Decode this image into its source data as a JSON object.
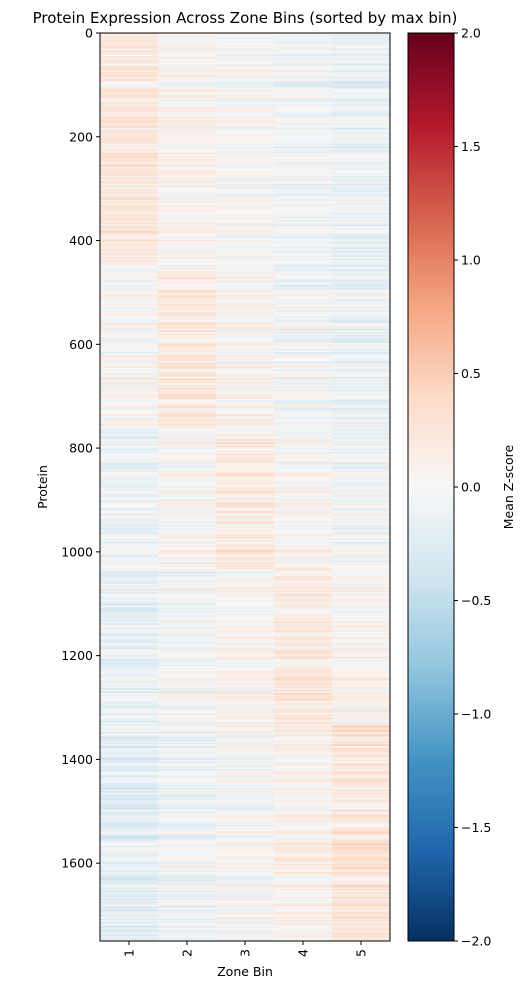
{
  "chart_data": {
    "type": "heatmap",
    "title": "Protein Expression Across Zone Bins (sorted by max bin)",
    "xlabel": "Zone Bin",
    "ylabel": "Protein",
    "x_categories": [
      "1",
      "2",
      "3",
      "4",
      "5"
    ],
    "y_range": [
      0,
      1750
    ],
    "y_ticks": [
      0,
      200,
      400,
      600,
      800,
      1000,
      1200,
      1400,
      1600
    ],
    "n_proteins": 1750,
    "blocks": [
      {
        "max_bin": "1",
        "protein_range": [
          0,
          450
        ],
        "mean_zscore_by_bin": [
          0.2,
          0.05,
          -0.02,
          -0.08,
          -0.15
        ]
      },
      {
        "max_bin": "2",
        "protein_range": [
          450,
          760
        ],
        "mean_zscore_by_bin": [
          0.02,
          0.2,
          0.05,
          -0.05,
          -0.12
        ]
      },
      {
        "max_bin": "3",
        "protein_range": [
          760,
          1030
        ],
        "mean_zscore_by_bin": [
          -0.08,
          0.04,
          0.2,
          0.05,
          -0.05
        ]
      },
      {
        "max_bin": "4",
        "protein_range": [
          1030,
          1330
        ],
        "mean_zscore_by_bin": [
          -0.15,
          -0.04,
          0.05,
          0.2,
          0.06
        ]
      },
      {
        "max_bin": "5",
        "protein_range": [
          1330,
          1750
        ],
        "mean_zscore_by_bin": [
          -0.2,
          -0.08,
          0.0,
          0.1,
          0.25
        ]
      }
    ],
    "colorbar": {
      "label": "Mean Z-score",
      "colormap": "RdBu_r",
      "range": [
        -2.0,
        2.0
      ],
      "ticks": [
        "2.0",
        "1.5",
        "1.0",
        "0.5",
        "0.0",
        "−0.5",
        "−1.0",
        "−1.5",
        "−2.0"
      ],
      "tick_values": [
        2.0,
        1.5,
        1.0,
        0.5,
        0.0,
        -0.5,
        -1.0,
        -1.5,
        -2.0
      ],
      "color_stops": [
        "#053061",
        "#2166ac",
        "#4393c3",
        "#92c5de",
        "#d1e5f0",
        "#f7f7f7",
        "#fddbc7",
        "#f4a582",
        "#d6604d",
        "#b2182b",
        "#67001f"
      ]
    }
  }
}
